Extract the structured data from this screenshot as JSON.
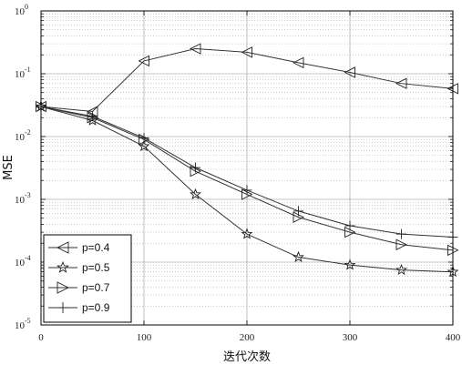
{
  "chart_data": {
    "type": "line",
    "xlabel": "迭代次数",
    "ylabel": "MSE",
    "xlim": [
      0,
      400
    ],
    "ylim": [
      1e-05,
      1
    ],
    "y_scale": "log",
    "grid": true,
    "legend_position": "bottom-left",
    "x_ticks": [
      "0",
      "100",
      "200",
      "300",
      "400"
    ],
    "y_ticks": [
      {
        "base": "10",
        "exp": "0"
      },
      {
        "base": "10",
        "exp": "-1"
      },
      {
        "base": "10",
        "exp": "-2"
      },
      {
        "base": "10",
        "exp": "-3"
      },
      {
        "base": "10",
        "exp": "-4"
      },
      {
        "base": "10",
        "exp": "-5"
      }
    ],
    "x": [
      0,
      50,
      100,
      150,
      200,
      250,
      300,
      350,
      400
    ],
    "series": [
      {
        "name": "p=0.4",
        "marker": "triangle-left",
        "values": [
          0.03,
          0.025,
          0.16,
          0.25,
          0.22,
          0.15,
          0.105,
          0.07,
          0.058
        ]
      },
      {
        "name": "p=0.5",
        "marker": "star",
        "values": [
          0.03,
          0.018,
          0.007,
          0.0012,
          0.00028,
          0.00012,
          9e-05,
          7.5e-05,
          7e-05
        ]
      },
      {
        "name": "p=0.7",
        "marker": "triangle-right",
        "values": [
          0.03,
          0.02,
          0.009,
          0.0028,
          0.0012,
          0.00052,
          0.0003,
          0.00019,
          0.000155
        ]
      },
      {
        "name": "p=0.9",
        "marker": "plus",
        "values": [
          0.03,
          0.021,
          0.0095,
          0.0032,
          0.0014,
          0.00065,
          0.00038,
          0.00028,
          0.00025
        ]
      }
    ]
  }
}
